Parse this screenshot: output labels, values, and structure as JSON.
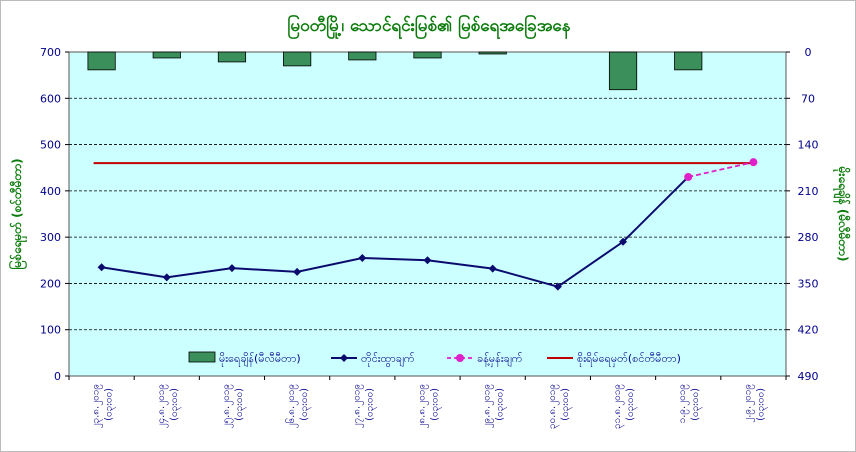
{
  "chart_data": {
    "type": "bar+line",
    "title": "မြဝတီမြို့၊ သောင်ရင်းမြစ်၏ မြစ်ရေအခြေအနေ",
    "ylabel_left": "မြစ်ရေမှတ် (စင်တီမီတာ)",
    "ylabel_right": "မိုးရေချိန် (မီလီမီတာ)",
    "ylim_left": [
      0,
      700
    ],
    "ylim_right": [
      0,
      490
    ],
    "right_axis_inverted": true,
    "left_ticks": [
      0,
      100,
      200,
      300,
      400,
      500,
      600,
      700
    ],
    "right_ticks": [
      0,
      70,
      140,
      210,
      280,
      350,
      420,
      490
    ],
    "categories": [
      {
        "date": "၂၃.၈.၂၀၁၉",
        "time": "(၀၃း၀၀)"
      },
      {
        "date": "၂၄.၈.၂၀၁၉",
        "time": "(၀၃း၀၀)"
      },
      {
        "date": "၂၅.၈.၂၀၁၉",
        "time": "(၀၃း၀၀)"
      },
      {
        "date": "၂၆.၈.၂၀၁၉",
        "time": "(၀၃း၀၀)"
      },
      {
        "date": "၂၇.၈.၂၀၁၉",
        "time": "(၀၃း၀၀)"
      },
      {
        "date": "၂၈.၈.၂၀၁၉",
        "time": "(၀၃း၀၀)"
      },
      {
        "date": "၂၉.၈.၂၀၁၉",
        "time": "(၀၃း၀၀)"
      },
      {
        "date": "၃၀.၈.၂၀၁၉",
        "time": "(၀၃း၀၀)"
      },
      {
        "date": "၃၁.၈.၂၀၁၉",
        "time": "(၀၃း၀၀)"
      },
      {
        "date": "၁.၉.၂၀၁၉",
        "time": "(၀၃း၀၀)"
      },
      {
        "date": "၂.၉.၂၀၁၉",
        "time": "(၀၃း၀၀)"
      }
    ],
    "series": [
      {
        "name": "မိုးရေချိန်(မီလီမီတာ)",
        "type": "bar",
        "axis": "right",
        "color": "#3a8f5a",
        "values": [
          27,
          9,
          15,
          21,
          12,
          9,
          3,
          null,
          57,
          27,
          null
        ]
      },
      {
        "name": "တိုင်းထွာချက်",
        "type": "line",
        "axis": "left",
        "color": "#0b0b6e",
        "values": [
          235,
          213,
          233,
          225,
          255,
          250,
          232,
          193,
          290,
          430,
          null
        ]
      },
      {
        "name": "ခန့်မှန်းချက်",
        "type": "line-dashed",
        "axis": "left",
        "color": "#e020c8",
        "values": [
          null,
          null,
          null,
          null,
          null,
          null,
          null,
          null,
          null,
          430,
          462
        ]
      },
      {
        "name": "စိုးရိမ်ရေမှတ်(စင်တီမီတာ)",
        "type": "hline",
        "axis": "left",
        "color": "#c00000",
        "value": 460
      }
    ],
    "grid": true,
    "legend_position": "bottom-inside"
  }
}
